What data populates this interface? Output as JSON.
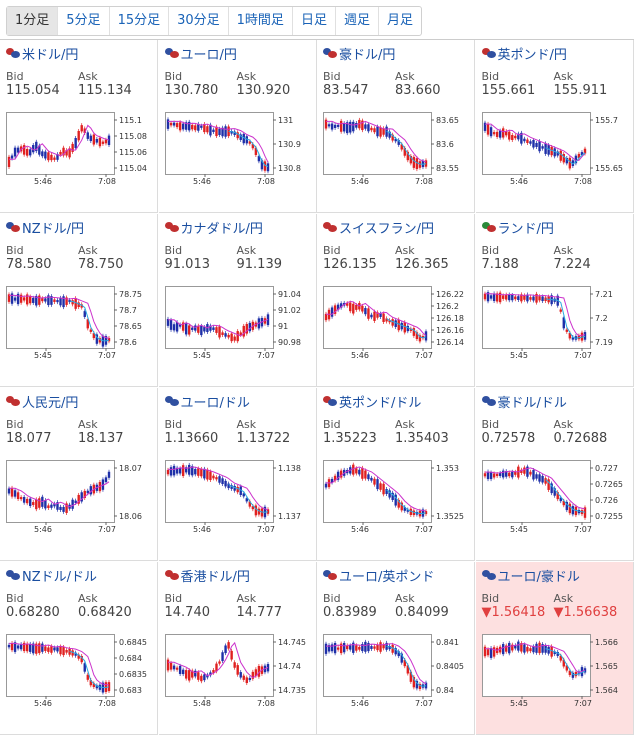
{
  "tabs": [
    {
      "label": "1分足",
      "active": true
    },
    {
      "label": "5分足",
      "active": false
    },
    {
      "label": "15分足",
      "active": false
    },
    {
      "label": "30分足",
      "active": false
    },
    {
      "label": "1時間足",
      "active": false
    },
    {
      "label": "日足",
      "active": false
    },
    {
      "label": "週足",
      "active": false
    },
    {
      "label": "月足",
      "active": false
    }
  ],
  "labels": {
    "bid": "Bid",
    "ask": "Ask"
  },
  "colors": {
    "up": "#e02020",
    "down": "#1e2fa8",
    "ma": "#cc33cc",
    "ma2": "#2aa8e0",
    "link": "#1a4ea0",
    "highlight": "#fde0e0"
  },
  "pairs": [
    {
      "name": "米ドル/円",
      "flags": [
        "#c03030",
        "#3050a0"
      ],
      "bid": "115.054",
      "ask": "115.134",
      "down": false,
      "ticks": [
        "115.1",
        "115.08",
        "115.06",
        "115.04"
      ],
      "time_start": "5:46",
      "time_end": "7:08",
      "chart": {
        "start": 115.055,
        "end": 115.055,
        "drop": false,
        "wave": [
          0.15,
          0.35,
          0.4,
          0.3,
          0.45,
          0.3,
          0.25,
          0.2,
          0.35,
          0.3,
          0.5,
          0.8,
          0.6,
          0.55,
          0.5,
          0.55
        ]
      }
    },
    {
      "name": "ユーロ/円",
      "flags": [
        "#3050a0",
        "#c03030"
      ],
      "bid": "130.780",
      "ask": "130.920",
      "down": false,
      "ticks": [
        "131",
        "130.9",
        "130.8"
      ],
      "time_start": "5:46",
      "time_end": "7:08",
      "chart": {
        "start": 130.95,
        "end": 130.79,
        "drop": true,
        "wave": [
          0.85,
          0.85,
          0.8,
          0.82,
          0.78,
          0.8,
          0.75,
          0.72,
          0.7,
          0.72,
          0.68,
          0.6,
          0.55,
          0.4,
          0.1,
          0.05
        ]
      }
    },
    {
      "name": "豪ドル/円",
      "flags": [
        "#3050a0",
        "#c03030"
      ],
      "bid": "83.547",
      "ask": "83.660",
      "down": false,
      "ticks": [
        "83.65",
        "83.6",
        "83.55"
      ],
      "time_start": "5:46",
      "time_end": "7:08",
      "chart": {
        "start": 83.66,
        "end": 83.55,
        "drop": true,
        "wave": [
          0.85,
          0.8,
          0.82,
          0.78,
          0.8,
          0.85,
          0.8,
          0.75,
          0.7,
          0.72,
          0.6,
          0.5,
          0.3,
          0.15,
          0.1,
          0.12
        ]
      }
    },
    {
      "name": "英ポンド/円",
      "flags": [
        "#c03030",
        "#3050a0"
      ],
      "bid": "155.661",
      "ask": "155.911",
      "down": false,
      "ticks": [
        "155.7",
        "155.65"
      ],
      "time_start": "5:46",
      "time_end": "7:08",
      "chart": {
        "start": 155.72,
        "end": 155.66,
        "drop": true,
        "wave": [
          0.8,
          0.7,
          0.65,
          0.7,
          0.6,
          0.62,
          0.55,
          0.5,
          0.45,
          0.4,
          0.35,
          0.3,
          0.2,
          0.1,
          0.25,
          0.35
        ]
      }
    },
    {
      "name": "NZドル/円",
      "flags": [
        "#3050a0",
        "#c03030"
      ],
      "bid": "78.580",
      "ask": "78.750",
      "down": false,
      "ticks": [
        "78.75",
        "78.7",
        "78.65",
        "78.6"
      ],
      "time_start": "5:45",
      "time_end": "7:07",
      "chart": {
        "start": 78.76,
        "end": 78.6,
        "drop": true,
        "wave": [
          0.85,
          0.83,
          0.84,
          0.82,
          0.8,
          0.82,
          0.81,
          0.8,
          0.78,
          0.8,
          0.75,
          0.7,
          0.3,
          0.1,
          0.05,
          0.08
        ]
      }
    },
    {
      "name": "カナダドル/円",
      "flags": [
        "#c03030",
        "#c03030"
      ],
      "bid": "91.013",
      "ask": "91.139",
      "down": false,
      "ticks": [
        "91.04",
        "91.02",
        "91",
        "90.98"
      ],
      "time_start": "5:45",
      "time_end": "7:07",
      "chart": {
        "start": 91.02,
        "end": 91.0,
        "drop": false,
        "wave": [
          0.4,
          0.3,
          0.35,
          0.25,
          0.3,
          0.25,
          0.3,
          0.28,
          0.2,
          0.15,
          0.1,
          0.2,
          0.3,
          0.35,
          0.4,
          0.45
        ]
      }
    },
    {
      "name": "スイスフラン/円",
      "flags": [
        "#c03030",
        "#c03030"
      ],
      "bid": "126.135",
      "ask": "126.365",
      "down": false,
      "ticks": [
        "126.22",
        "126.2",
        "126.18",
        "126.16",
        "126.14"
      ],
      "time_start": "5:46",
      "time_end": "7:07",
      "chart": {
        "start": 126.2,
        "end": 126.14,
        "drop": true,
        "wave": [
          0.5,
          0.6,
          0.7,
          0.75,
          0.65,
          0.7,
          0.6,
          0.5,
          0.55,
          0.45,
          0.4,
          0.35,
          0.3,
          0.25,
          0.1,
          0.15
        ]
      }
    },
    {
      "name": "ランド/円",
      "flags": [
        "#2a8a3a",
        "#c03030"
      ],
      "bid": "7.188",
      "ask": "7.224",
      "down": false,
      "ticks": [
        "7.21",
        "7.2",
        "7.19"
      ],
      "time_start": "5:45",
      "time_end": "7:07",
      "chart": {
        "start": 7.215,
        "end": 7.189,
        "drop": true,
        "wave": [
          0.88,
          0.87,
          0.86,
          0.87,
          0.86,
          0.85,
          0.86,
          0.84,
          0.85,
          0.83,
          0.82,
          0.8,
          0.3,
          0.1,
          0.12,
          0.15
        ]
      }
    },
    {
      "name": "人民元/円",
      "flags": [
        "#c03030",
        "#c03030"
      ],
      "bid": "18.077",
      "ask": "18.137",
      "down": false,
      "ticks": [
        "18.07",
        "18.06"
      ],
      "time_start": "5:46",
      "time_end": "7:07",
      "chart": {
        "start": 18.07,
        "end": 18.075,
        "drop": false,
        "wave": [
          0.5,
          0.45,
          0.35,
          0.3,
          0.25,
          0.3,
          0.2,
          0.25,
          0.15,
          0.2,
          0.3,
          0.4,
          0.5,
          0.55,
          0.6,
          0.8
        ]
      }
    },
    {
      "name": "ユーロ/ドル",
      "flags": [
        "#3050a0",
        "#3050a0"
      ],
      "bid": "1.13660",
      "ask": "1.13722",
      "down": false,
      "ticks": [
        "1.138",
        "1.137"
      ],
      "time_start": "5:46",
      "time_end": "7:07",
      "chart": {
        "start": 1.1378,
        "end": 1.1366,
        "drop": true,
        "wave": [
          0.85,
          0.88,
          0.87,
          0.9,
          0.86,
          0.84,
          0.8,
          0.75,
          0.7,
          0.6,
          0.55,
          0.5,
          0.3,
          0.15,
          0.1,
          0.12
        ]
      }
    },
    {
      "name": "英ポンド/ドル",
      "flags": [
        "#c03030",
        "#3050a0"
      ],
      "bid": "1.35223",
      "ask": "1.35403",
      "down": false,
      "ticks": [
        "1.353",
        "1.3525"
      ],
      "time_start": "5:46",
      "time_end": "7:07",
      "chart": {
        "start": 1.3532,
        "end": 1.3522,
        "drop": true,
        "wave": [
          0.6,
          0.7,
          0.8,
          0.85,
          0.9,
          0.85,
          0.8,
          0.7,
          0.6,
          0.5,
          0.4,
          0.25,
          0.15,
          0.1,
          0.08,
          0.1
        ]
      }
    },
    {
      "name": "豪ドル/ドル",
      "flags": [
        "#3050a0",
        "#3050a0"
      ],
      "bid": "0.72578",
      "ask": "0.72688",
      "down": false,
      "ticks": [
        "0.727",
        "0.7265",
        "0.726",
        "0.7255"
      ],
      "time_start": "5:45",
      "time_end": "7:07",
      "chart": {
        "start": 0.7269,
        "end": 0.7257,
        "drop": true,
        "wave": [
          0.8,
          0.78,
          0.8,
          0.82,
          0.8,
          0.85,
          0.88,
          0.82,
          0.75,
          0.7,
          0.55,
          0.4,
          0.25,
          0.15,
          0.12,
          0.1
        ]
      }
    },
    {
      "name": "NZドル/ドル",
      "flags": [
        "#3050a0",
        "#3050a0"
      ],
      "bid": "0.68280",
      "ask": "0.68420",
      "down": false,
      "ticks": [
        "0.6845",
        "0.684",
        "0.6835",
        "0.683"
      ],
      "time_start": "5:46",
      "time_end": "7:08",
      "chart": {
        "start": 0.6842,
        "end": 0.6828,
        "drop": true,
        "wave": [
          0.85,
          0.83,
          0.84,
          0.82,
          0.8,
          0.82,
          0.78,
          0.8,
          0.76,
          0.75,
          0.7,
          0.6,
          0.2,
          0.1,
          0.08,
          0.1
        ]
      }
    },
    {
      "name": "香港ドル/円",
      "flags": [
        "#c03030",
        "#c03030"
      ],
      "bid": "14.740",
      "ask": "14.777",
      "down": false,
      "ticks": [
        "14.745",
        "14.74",
        "14.735"
      ],
      "time_start": "5:48",
      "time_end": "7:08",
      "chart": {
        "start": 14.74,
        "end": 14.74,
        "drop": false,
        "wave": [
          0.5,
          0.45,
          0.4,
          0.3,
          0.35,
          0.25,
          0.3,
          0.4,
          0.6,
          0.9,
          0.5,
          0.3,
          0.2,
          0.35,
          0.4,
          0.45
        ]
      }
    },
    {
      "name": "ユーロ/英ポンド",
      "flags": [
        "#3050a0",
        "#c03030"
      ],
      "bid": "0.83989",
      "ask": "0.84099",
      "down": false,
      "ticks": [
        "0.841",
        "0.8405",
        "0.84"
      ],
      "time_start": "5:46",
      "time_end": "7:07",
      "chart": {
        "start": 0.8408,
        "end": 0.84,
        "drop": true,
        "wave": [
          0.8,
          0.82,
          0.8,
          0.83,
          0.82,
          0.81,
          0.84,
          0.82,
          0.83,
          0.85,
          0.8,
          0.7,
          0.5,
          0.2,
          0.1,
          0.12
        ]
      }
    },
    {
      "name": "ユーロ/豪ドル",
      "flags": [
        "#3050a0",
        "#3050a0"
      ],
      "bid": "▼1.56418",
      "ask": "▼1.56638",
      "down": true,
      "highlight": true,
      "ticks": [
        "1.566",
        "1.565",
        "1.564"
      ],
      "time_start": "5:45",
      "time_end": "7:07",
      "chart": {
        "start": 1.5655,
        "end": 1.5648,
        "drop": true,
        "wave": [
          0.75,
          0.72,
          0.78,
          0.8,
          0.82,
          0.85,
          0.8,
          0.78,
          0.82,
          0.8,
          0.75,
          0.7,
          0.5,
          0.3,
          0.35,
          0.4
        ]
      }
    }
  ]
}
